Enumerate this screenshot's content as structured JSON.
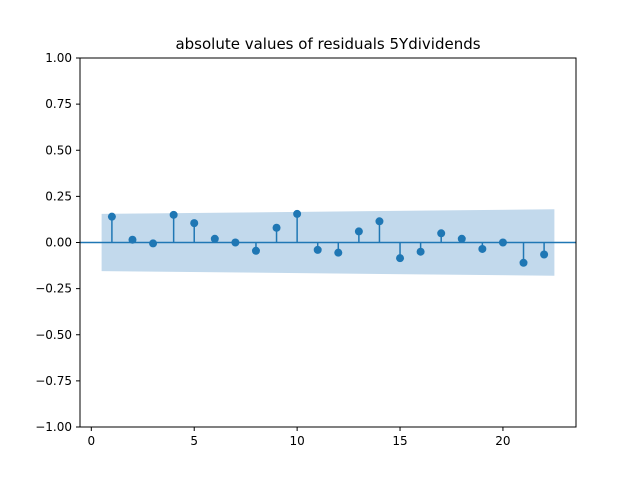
{
  "chart_data": {
    "type": "stem",
    "title": "absolute values of residuals 5Ydividends",
    "xlabel": "",
    "ylabel": "",
    "xlim": [
      -0.55,
      23.55
    ],
    "ylim": [
      -1.0,
      1.0
    ],
    "x_ticks": [
      0,
      5,
      10,
      15,
      20
    ],
    "y_ticks": [
      -1.0,
      -0.75,
      -0.5,
      -0.25,
      0.0,
      0.25,
      0.5,
      0.75,
      1.0
    ],
    "x_tick_labels": [
      "0",
      "5",
      "10",
      "15",
      "20"
    ],
    "y_tick_labels": [
      "−1.00",
      "−0.75",
      "−0.50",
      "−0.25",
      "0.00",
      "0.25",
      "0.50",
      "0.75",
      "1.00"
    ],
    "baseline": 0,
    "series": [
      {
        "x": [
          1,
          2,
          3,
          4,
          5,
          6,
          7,
          8,
          9,
          10,
          11,
          12,
          13,
          14,
          15,
          16,
          17,
          18,
          19,
          20,
          21,
          22
        ],
        "values": [
          0.14,
          0.015,
          -0.005,
          0.15,
          0.105,
          0.02,
          0.0,
          -0.045,
          0.08,
          0.155,
          -0.04,
          -0.055,
          0.06,
          0.115,
          -0.085,
          -0.05,
          0.05,
          0.02,
          -0.035,
          0.0,
          -0.11,
          -0.065
        ]
      }
    ],
    "confidence_band": {
      "x": [
        0.5,
        22.5
      ],
      "upper": [
        0.155,
        0.18
      ],
      "lower": [
        -0.155,
        -0.18
      ]
    },
    "colors": {
      "stem": "#1f77b4",
      "band": "#c2d9ec",
      "baseline": "#1f77b4"
    },
    "grid": false
  }
}
